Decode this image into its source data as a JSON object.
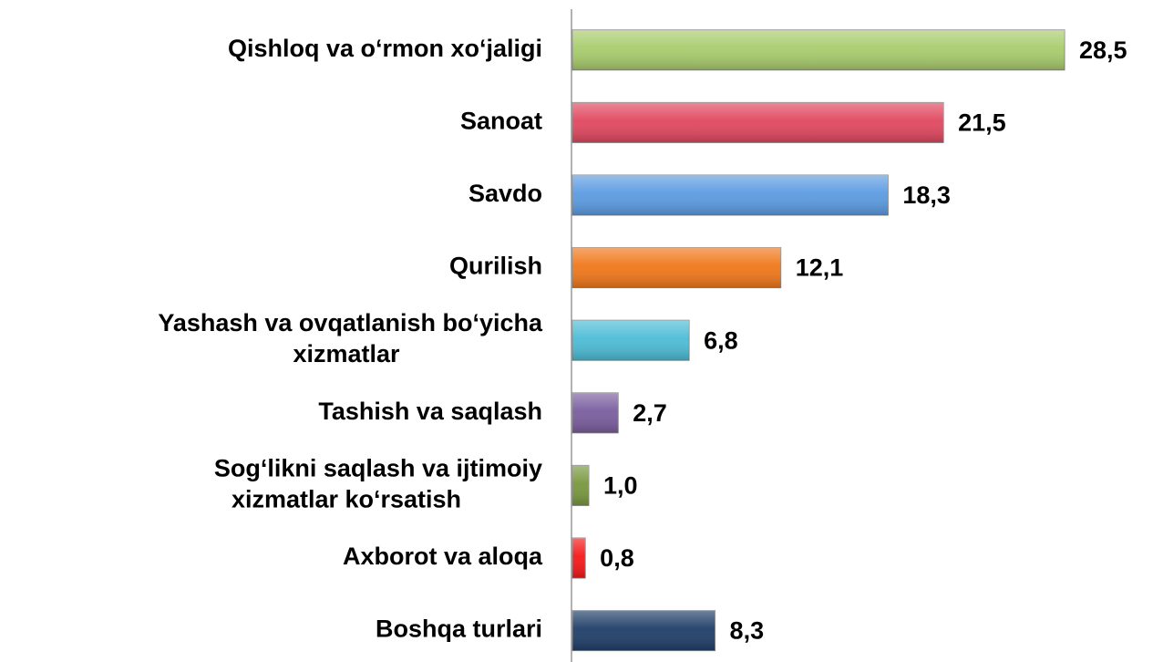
{
  "chart_data": {
    "type": "barh",
    "categories": [
      "Qishloq va o‘rmon xo‘jaligi",
      "Sanoat",
      "Savdo",
      "Qurilish",
      "Yashash va ovqatlanish bo‘yicha\nxizmatlar",
      "Tashish va saqlash",
      "Sog‘likni saqlash va ijtimoiy\nxizmatlar ko‘rsatish",
      "Axborot va aloqa",
      "Boshqa turlari"
    ],
    "values": [
      28.5,
      21.5,
      18.3,
      12.1,
      6.8,
      2.7,
      1.0,
      0.8,
      8.3
    ],
    "value_labels": [
      "28,5",
      "21,5",
      "18,3",
      "12,1",
      "6,8",
      "2,7",
      "1,0",
      "0,8",
      "8,3"
    ],
    "colors": [
      "#a8cc6c",
      "#e0475f",
      "#5b9be2",
      "#f0771a",
      "#4cbcd6",
      "#7a5d9e",
      "#78983d",
      "#f51818",
      "#1f3e68"
    ]
  }
}
